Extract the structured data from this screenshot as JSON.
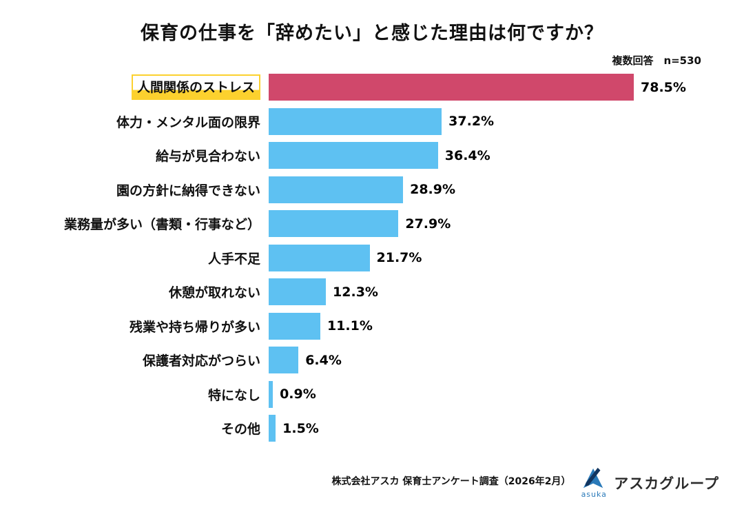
{
  "title": "保育の仕事を「辞めたい」と感じた理由は何ですか？",
  "note": "複数回答　n=530",
  "footer": {
    "source": "株式会社アスカ 保育士アンケート調査（2026年2月）",
    "logo_text": "アスカグループ",
    "logo_sub": "asuka"
  },
  "colors": {
    "bar": "#5ec1f2",
    "bar_highlight": "#d0486b",
    "label_highlight": "#fcd12e"
  },
  "chart_data": {
    "type": "bar",
    "orientation": "horizontal",
    "title": "保育の仕事を「辞めたい」と感じた理由は何ですか？",
    "unit": "%",
    "xlim": [
      0,
      80
    ],
    "categories": [
      "人間関係のストレス",
      "体力・メンタル面の限界",
      "給与が見合わない",
      "園の方針に納得できない",
      "業務量が多い（書類・行事など）",
      "人手不足",
      "休憩が取れない",
      "残業や持ち帰りが多い",
      "保護者対応がつらい",
      "特になし",
      "その他"
    ],
    "values": [
      78.5,
      37.2,
      36.4,
      28.9,
      27.9,
      21.7,
      12.3,
      11.1,
      6.4,
      0.9,
      1.5
    ],
    "highlight_index": 0
  }
}
